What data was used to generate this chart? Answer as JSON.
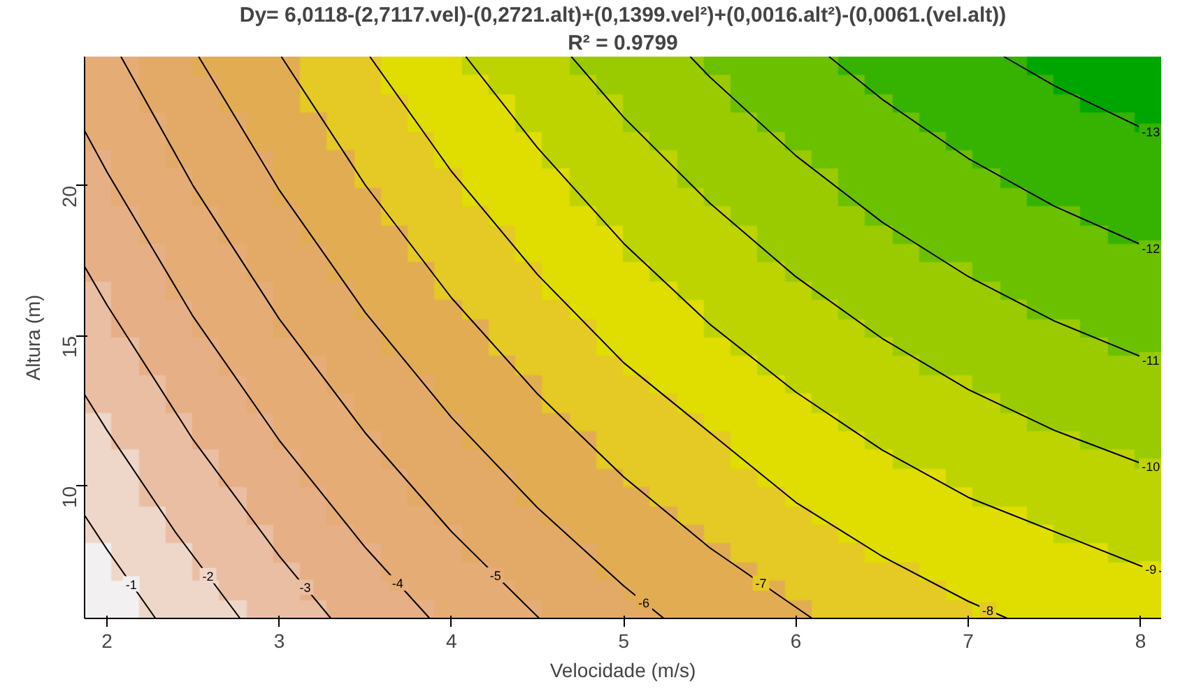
{
  "chart_data": {
    "type": "line",
    "title": "Dy= 6,0118-(2,7117.vel)-(0,2721.alt)+(0,1399.vel²)+(0,0016.alt²)-(0,0061.(vel.alt))",
    "subtitle": "R² = 0.9799",
    "xlabel": "Velocidade (m/s)",
    "ylabel": "Altura (m)",
    "xlim": [
      1.87,
      8.12
    ],
    "ylim": [
      5.6,
      24.3
    ],
    "xticks": [
      2,
      3,
      4,
      5,
      6,
      7,
      8
    ],
    "yticks": [
      10,
      15,
      20
    ],
    "series": [
      {
        "name": "-1",
        "color": "#000000",
        "x": [
          1.87,
          2,
          2.282
        ],
        "values": [
          9.03,
          7.9,
          5.6
        ]
      },
      {
        "name": "-2",
        "color": "#000000",
        "x": [
          1.87,
          2,
          2.4,
          2.773
        ],
        "values": [
          13.05,
          11.86,
          8.45,
          5.6
        ]
      },
      {
        "name": "-3",
        "color": "#000000",
        "x": [
          1.87,
          2,
          2.5,
          3,
          3.3
        ],
        "values": [
          17.31,
          16.03,
          11.55,
          7.68,
          5.6
        ]
      },
      {
        "name": "-4",
        "color": "#000000",
        "x": [
          1.87,
          2,
          2.5,
          3,
          3.5,
          3.874
        ],
        "values": [
          21.83,
          20.46,
          15.65,
          11.53,
          7.96,
          5.6
        ]
      },
      {
        "name": "-5",
        "color": "#000000",
        "x": [
          2.081,
          2.5,
          3,
          3.5,
          4,
          4.51
        ],
        "values": [
          24.3,
          20.0,
          15.57,
          11.77,
          8.49,
          5.6
        ]
      },
      {
        "name": "-6",
        "color": "#000000",
        "x": [
          2.532,
          3,
          3.5,
          4,
          4.5,
          5,
          5.233
        ],
        "values": [
          24.3,
          19.86,
          15.78,
          12.29,
          9.28,
          6.68,
          5.6
        ]
      },
      {
        "name": "-7",
        "color": "#000000",
        "x": [
          3.012,
          3.5,
          4,
          4.5,
          5,
          5.5,
          6.094
        ],
        "values": [
          24.3,
          20.02,
          16.27,
          13.07,
          10.31,
          7.95,
          5.6
        ]
      },
      {
        "name": "-8",
        "color": "#000000",
        "x": [
          3.526,
          4,
          4.5,
          5,
          6,
          6.5,
          7,
          7.228
        ],
        "values": [
          24.3,
          20.48,
          17.04,
          14.11,
          9.46,
          7.67,
          6.17,
          5.6
        ]
      },
      {
        "name": "-9",
        "color": "#000000",
        "x": [
          4.083,
          4.5,
          5,
          5.5,
          6,
          6.5,
          7,
          8,
          8.12
        ],
        "values": [
          24.3,
          21.26,
          18.08,
          15.39,
          13.13,
          11.21,
          9.63,
          7.35,
          7.15
        ]
      },
      {
        "name": "-10",
        "color": "#000000",
        "x": [
          4.696,
          5,
          5.5,
          6,
          6.5,
          7,
          7.5,
          8,
          8.12
        ],
        "values": [
          24.3,
          22.28,
          19.42,
          16.97,
          14.92,
          13.22,
          11.86,
          10.77,
          10.56
        ]
      },
      {
        "name": "-11",
        "color": "#000000",
        "x": [
          5.386,
          5.5,
          6,
          6.5,
          7,
          7.5,
          8,
          8.12
        ],
        "values": [
          24.3,
          23.62,
          21.0,
          18.79,
          16.98,
          15.5,
          14.32,
          14.1
        ]
      },
      {
        "name": "-12",
        "color": "#000000",
        "x": [
          6.192,
          6.5,
          7,
          7.5,
          8,
          8.12
        ],
        "values": [
          24.3,
          22.88,
          20.91,
          19.32,
          18.05,
          17.81
        ]
      },
      {
        "name": "-13",
        "color": "#000000",
        "x": [
          7.207,
          7.5,
          8,
          8.12
        ],
        "values": [
          24.3,
          23.33,
          21.95,
          21.68
        ]
      }
    ]
  }
}
